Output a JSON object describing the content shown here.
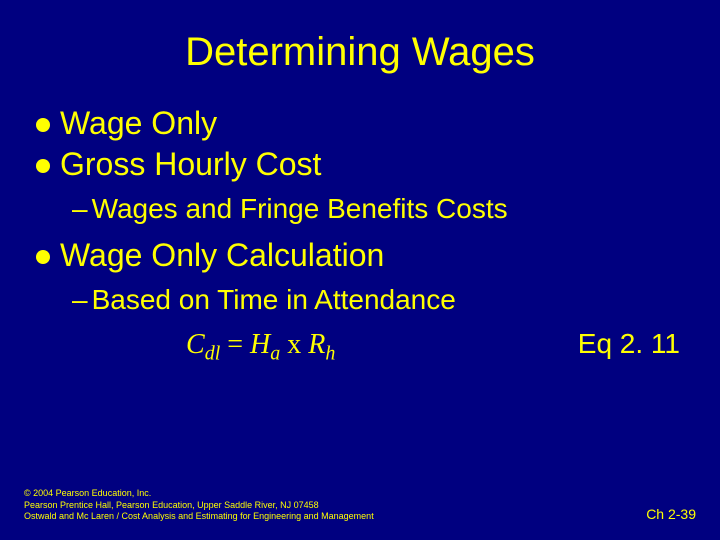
{
  "colors": {
    "background": "#000080",
    "title": "#ffff00",
    "body": "#ffff00",
    "bullet": "#ffff00",
    "footer": "#ffff00"
  },
  "title": "Determining Wages",
  "bullets": [
    {
      "text": "Wage Only"
    },
    {
      "text": "Gross Hourly Cost"
    }
  ],
  "sub1": "Wages and Fringe Benefits Costs",
  "bullet3": "Wage Only Calculation",
  "sub2": "Based on Time in Attendance",
  "equation": {
    "lhs_sym": "C",
    "lhs_sub": "dl",
    "eq": " = ",
    "r1_sym": "H",
    "r1_sub": "a",
    "times": " x ",
    "r2_sym": "R",
    "r2_sub": "h",
    "label": "Eq 2. 11"
  },
  "footer": {
    "l1": "© 2004 Pearson Education, Inc.",
    "l2": "Pearson Prentice Hall, Pearson Education, Upper Saddle River, NJ 07458",
    "l3": "Ostwald and Mc Laren / Cost Analysis and Estimating for Engineering and Management"
  },
  "pagenum": "Ch 2-39"
}
